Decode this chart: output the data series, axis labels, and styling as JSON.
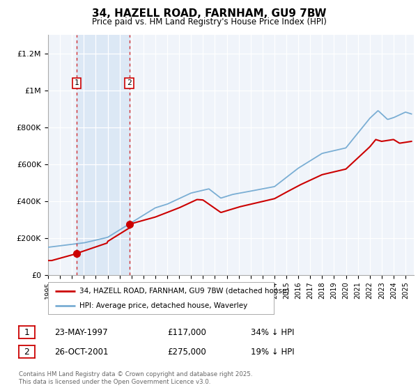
{
  "title": "34, HAZELL ROAD, FARNHAM, GU9 7BW",
  "subtitle": "Price paid vs. HM Land Registry's House Price Index (HPI)",
  "ylabel_ticks": [
    "£0",
    "£200K",
    "£400K",
    "£600K",
    "£800K",
    "£1M",
    "£1.2M"
  ],
  "ytick_values": [
    0,
    200000,
    400000,
    600000,
    800000,
    1000000,
    1200000
  ],
  "ylim": [
    0,
    1300000
  ],
  "xlim_start": 1995.0,
  "xlim_end": 2025.7,
  "sale1_date": 1997.39,
  "sale1_price": 117000,
  "sale1_label": "1",
  "sale2_date": 2001.82,
  "sale2_price": 275000,
  "sale2_label": "2",
  "line_red_color": "#cc0000",
  "line_blue_color": "#7aaed4",
  "dashed_vline_color": "#cc0000",
  "background_color": "#f0f4fa",
  "highlight_color": "#dce8f5",
  "legend_line1": "34, HAZELL ROAD, FARNHAM, GU9 7BW (detached house)",
  "legend_line2": "HPI: Average price, detached house, Waverley",
  "table_row1": [
    "1",
    "23-MAY-1997",
    "£117,000",
    "34% ↓ HPI"
  ],
  "table_row2": [
    "2",
    "26-OCT-2001",
    "£275,000",
    "19% ↓ HPI"
  ],
  "footer": "Contains HM Land Registry data © Crown copyright and database right 2025.\nThis data is licensed under the Open Government Licence v3.0.",
  "xtick_years": [
    1995,
    1996,
    1997,
    1998,
    1999,
    2000,
    2001,
    2002,
    2003,
    2004,
    2005,
    2006,
    2007,
    2008,
    2009,
    2010,
    2011,
    2012,
    2013,
    2014,
    2015,
    2016,
    2017,
    2018,
    2019,
    2020,
    2021,
    2022,
    2023,
    2024,
    2025
  ]
}
